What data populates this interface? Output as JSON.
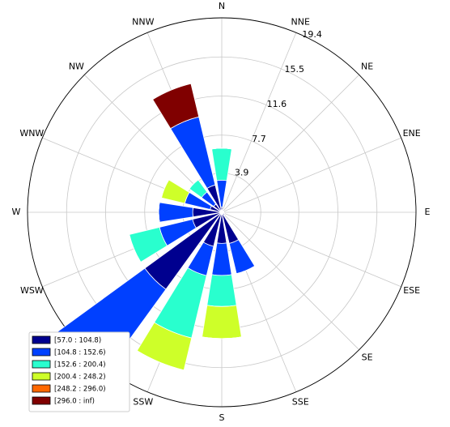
{
  "chart_data": {
    "type": "windrose",
    "directions": [
      "N",
      "NNE",
      "NE",
      "ENE",
      "E",
      "ESE",
      "SE",
      "SSE",
      "S",
      "SSW",
      "SW",
      "WSW",
      "W",
      "WNW",
      "NW",
      "NNW"
    ],
    "rlim": [
      0,
      19.4
    ],
    "rticks": [
      3.9,
      7.7,
      11.6,
      15.5,
      19.4
    ],
    "grid": true,
    "legend": "lower left",
    "series": [
      {
        "name": "[57.0 : 104.8)",
        "color": "#00008f",
        "values": [
          0.5,
          0.3,
          0.2,
          0.2,
          0.2,
          0.3,
          0.4,
          3.2,
          3.1,
          3.5,
          9.5,
          3.0,
          2.9,
          1.2,
          1.0,
          2.8
        ]
      },
      {
        "name": "[104.8 : 152.6)",
        "color": "#0040ff",
        "values": [
          2.7,
          0,
          0,
          0,
          0,
          0,
          0,
          3.1,
          3.2,
          3.0,
          11.5,
          3.4,
          3.4,
          2.6,
          1.5,
          7.0
        ]
      },
      {
        "name": "[152.6 : 200.4)",
        "color": "#29ffce",
        "values": [
          3.2,
          0,
          0,
          0,
          0,
          0,
          0,
          0,
          3.1,
          6.4,
          0,
          3.1,
          0,
          0,
          1.5,
          0
        ]
      },
      {
        "name": "[200.4 : 248.2)",
        "color": "#ceff29",
        "values": [
          0,
          0,
          0,
          0,
          0,
          0,
          0,
          0,
          3.2,
          3.3,
          0,
          0,
          0,
          2.4,
          0,
          0
        ]
      },
      {
        "name": "[248.2 : 296.0)",
        "color": "#ff6800",
        "values": [
          0,
          0,
          0,
          0,
          0,
          0,
          0,
          0,
          0,
          0,
          0,
          0,
          0,
          0,
          0,
          0
        ]
      },
      {
        "name": "[296.0 : inf)",
        "color": "#800000",
        "values": [
          0,
          0,
          0,
          0,
          0,
          0,
          0,
          0,
          0,
          0,
          0,
          0,
          0,
          0,
          0,
          3.4
        ]
      }
    ]
  }
}
